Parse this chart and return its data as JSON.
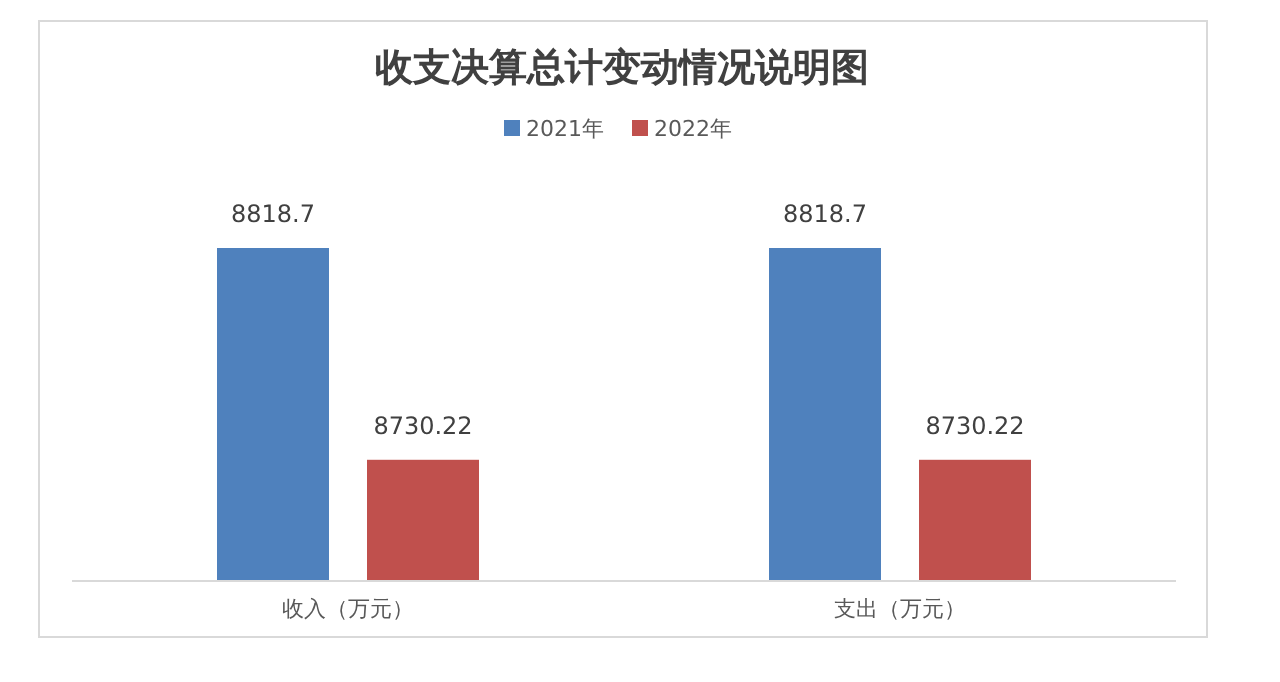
{
  "chart_data": {
    "type": "bar",
    "title": "收支决算总计变动情况说明图",
    "categories": [
      "收入（万元）",
      "支出（万元）"
    ],
    "series": [
      {
        "name": "2021年",
        "color": "#4f81bd",
        "values": [
          8818.7,
          8818.7
        ]
      },
      {
        "name": "2022年",
        "color": "#c0504d",
        "values": [
          8730.22,
          8730.22
        ]
      }
    ],
    "ylim": [
      8680,
      8818.7
    ],
    "tick_labels": "x",
    "data_labels": true,
    "legend": "top"
  }
}
